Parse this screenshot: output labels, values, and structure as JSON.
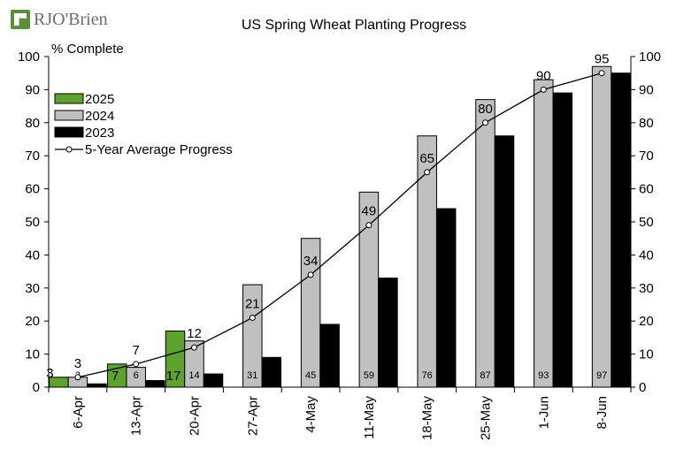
{
  "logo_text": "RJO'Brien",
  "chart_data": {
    "type": "bar",
    "title": "US Spring Wheat Planting Progress",
    "ylabel": "% Complete",
    "xlabel": "",
    "ylim": [
      0,
      100
    ],
    "yticks": [
      0,
      10,
      20,
      30,
      40,
      50,
      60,
      70,
      80,
      90,
      100
    ],
    "grid": false,
    "legend_position": "top-left",
    "categories": [
      "6-Apr",
      "13-Apr",
      "20-Apr",
      "27-Apr",
      "4-May",
      "11-May",
      "18-May",
      "25-May",
      "1-Jun",
      "8-Jun"
    ],
    "series": [
      {
        "name": "2025",
        "kind": "bar",
        "color": "#5ea22e",
        "values": [
          3,
          7,
          17,
          null,
          null,
          null,
          null,
          null,
          null,
          null
        ],
        "labels": [
          "3",
          "7",
          "17",
          "",
          "",
          "",
          "",
          "",
          "",
          ""
        ]
      },
      {
        "name": "2024",
        "kind": "bar",
        "color": "#c0c0c0",
        "values": [
          3,
          6,
          14,
          31,
          45,
          59,
          76,
          87,
          93,
          97
        ],
        "labels": [
          "3",
          "6",
          "14",
          "31",
          "45",
          "59",
          "76",
          "87",
          "93",
          "97"
        ]
      },
      {
        "name": "2023",
        "kind": "bar",
        "color": "#000000",
        "values": [
          1,
          2,
          4,
          9,
          19,
          33,
          54,
          76,
          89,
          95
        ]
      },
      {
        "name": "5-Year Average Progress",
        "kind": "line",
        "color": "#000000",
        "values": [
          3,
          7,
          12,
          21,
          34,
          49,
          65,
          80,
          90,
          95
        ],
        "labels": [
          "3",
          "7",
          "12",
          "21",
          "34",
          "49",
          "65",
          "80",
          "90",
          "95"
        ]
      }
    ]
  }
}
